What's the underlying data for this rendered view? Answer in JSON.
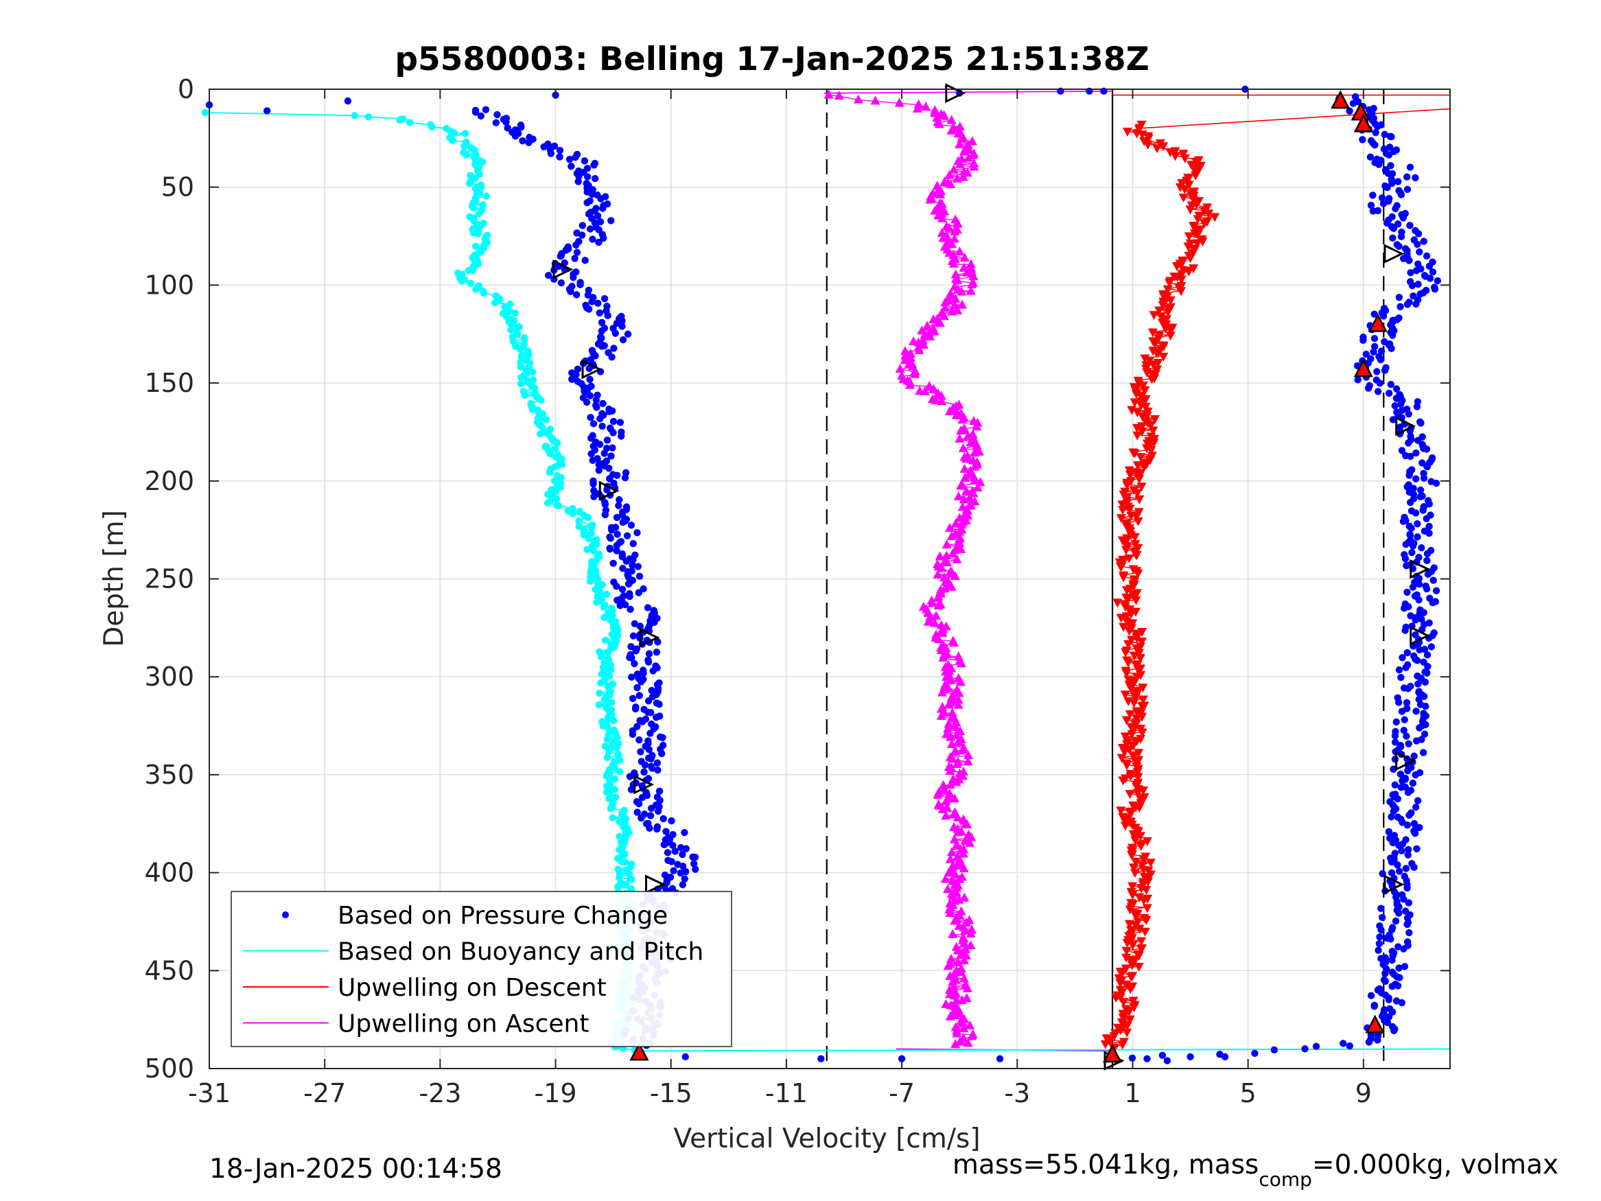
{
  "chart_data": {
    "type": "scatter",
    "title": "p5580003: Belling 17-Jan-2025 21:51:38Z",
    "xlabel": "Vertical Velocity [cm/s]",
    "ylabel": "Depth [m]",
    "xlim": [
      -31,
      12
    ],
    "ylim": [
      0,
      500
    ],
    "y_reversed": true,
    "grid": true,
    "x_ticks": [
      -31,
      -27,
      -23,
      -19,
      -15,
      -11,
      -7,
      -3,
      1,
      5,
      9
    ],
    "x_tick_labels": [
      "-31",
      "-27",
      "-23",
      "-19",
      "-15",
      "-11",
      "-7",
      "-3",
      "1",
      "5",
      "9"
    ],
    "y_ticks": [
      0,
      50,
      100,
      150,
      200,
      250,
      300,
      350,
      400,
      450,
      500
    ],
    "y_tick_labels": [
      "0",
      "50",
      "100",
      "150",
      "200",
      "250",
      "300",
      "350",
      "400",
      "450",
      "500"
    ],
    "reference_lines": [
      {
        "x": -9.6,
        "style": "dashed"
      },
      {
        "x": 0.3,
        "style": "solid"
      },
      {
        "x": 9.7,
        "style": "dashed"
      }
    ],
    "legend_position": "bottom-left",
    "legend": [
      {
        "label": "Based on Pressure Change",
        "marker": "dot",
        "color": "#0000ff"
      },
      {
        "label": "Based on Buoyancy and Pitch",
        "marker": "line",
        "color": "#00ffff"
      },
      {
        "label": "Upwelling on Descent",
        "marker": "line",
        "color": "#ff0000"
      },
      {
        "label": "Upwelling on Ascent",
        "marker": "line",
        "color": "#ff00ff"
      }
    ],
    "series": [
      {
        "name": "Based on Pressure Change",
        "color": "#0000ff",
        "marker": "dot",
        "profiles": [
          {
            "depth": [
              10,
              20,
              30,
              36,
              45,
              55,
              65,
              75,
              85,
              95,
              105,
              115,
              125,
              135,
              145,
              155,
              165,
              175,
              185,
              195,
              205,
              215,
              225,
              235,
              245,
              255,
              265,
              275,
              285,
              295,
              305,
              315,
              325,
              335,
              345,
              355,
              365,
              372,
              380,
              390,
              400,
              410,
              420,
              430,
              440,
              450,
              460,
              470,
              480,
              488
            ],
            "velocity": [
              -21.5,
              -20.5,
              -19.2,
              -18.2,
              -18.0,
              -17.8,
              -17.5,
              -17.8,
              -18.3,
              -18.8,
              -18.0,
              -17.2,
              -17.0,
              -17.3,
              -18.0,
              -17.8,
              -17.3,
              -17.2,
              -17.5,
              -17.0,
              -17.3,
              -17.0,
              -16.6,
              -16.8,
              -16.6,
              -16.5,
              -16.2,
              -15.8,
              -15.9,
              -16.0,
              -15.9,
              -15.8,
              -15.9,
              -15.8,
              -15.9,
              -15.9,
              -15.8,
              -15.6,
              -15.0,
              -14.6,
              -14.7,
              -15.3,
              -15.6,
              -15.5,
              -15.5,
              -15.6,
              -15.7,
              -15.9,
              -16.0,
              -16.3
            ],
            "spread": 0.55
          },
          {
            "depth": [
              495,
              493,
              492,
              490,
              488,
              485,
              482,
              478,
              470,
              460,
              450,
              440,
              430,
              420,
              410,
              400,
              390,
              380,
              370,
              360,
              350,
              340,
              330,
              320,
              310,
              300,
              290,
              280,
              270,
              260,
              250,
              240,
              230,
              220,
              210,
              200,
              190,
              180,
              170,
              160,
              155,
              152,
              148,
              140,
              130,
              120,
              110,
              100,
              92,
              85,
              75,
              65,
              58,
              55,
              50,
              45,
              40,
              35,
              30,
              25,
              18,
              10,
              4
            ],
            "velocity": [
              1.0,
              3.0,
              5.0,
              7.0,
              8.5,
              9.2,
              9.5,
              9.7,
              9.8,
              9.8,
              9.9,
              10.0,
              10.1,
              10.1,
              10.1,
              10.2,
              10.3,
              10.4,
              10.4,
              10.5,
              10.5,
              10.6,
              10.6,
              10.7,
              10.7,
              10.7,
              10.8,
              10.9,
              10.9,
              11.0,
              11.0,
              10.9,
              10.8,
              10.9,
              11.1,
              11.0,
              10.9,
              10.8,
              10.6,
              10.4,
              10.2,
              9.5,
              9.2,
              9.3,
              9.5,
              9.6,
              10.2,
              11.2,
              11.0,
              10.8,
              10.5,
              10.0,
              9.6,
              9.8,
              10.2,
              10.3,
              10.1,
              9.8,
              9.6,
              9.5,
              9.3,
              9.0,
              8.5
            ],
            "spread": 0.55
          }
        ],
        "stray_points": [
          {
            "x": -31.0,
            "y": 8
          },
          {
            "x": -29.0,
            "y": 11
          },
          {
            "x": -26.2,
            "y": 6
          },
          {
            "x": -19.0,
            "y": 3
          },
          {
            "x": -14.5,
            "y": 494
          },
          {
            "x": -9.8,
            "y": 495
          },
          {
            "x": -7.0,
            "y": 495
          },
          {
            "x": -3.6,
            "y": 495
          },
          {
            "x": -5.0,
            "y": 2
          },
          {
            "x": -1.5,
            "y": 1
          },
          {
            "x": -0.5,
            "y": 1
          },
          {
            "x": 0.0,
            "y": 1
          },
          {
            "x": 4.9,
            "y": 0
          },
          {
            "x": 1.5,
            "y": 495
          },
          {
            "x": 2.2,
            "y": 496
          },
          {
            "x": 3.0,
            "y": 494
          },
          {
            "x": 4.2,
            "y": 494
          }
        ]
      },
      {
        "name": "Based on Buoyancy and Pitch",
        "color": "#00ffff",
        "marker": "dot-line",
        "profile": {
          "depth": [
            12,
            12,
            13,
            15,
            18,
            20,
            22,
            25,
            28,
            32,
            36,
            40,
            45,
            50,
            55,
            60,
            65,
            70,
            75,
            80,
            85,
            90,
            95,
            100,
            105,
            110,
            115,
            120,
            130,
            140,
            150,
            160,
            170,
            180,
            190,
            200,
            210,
            215,
            220,
            230,
            240,
            250,
            260,
            270,
            280,
            290,
            300,
            310,
            320,
            330,
            340,
            350,
            360,
            365,
            370,
            380,
            390,
            400,
            410,
            420,
            430,
            440,
            450,
            460,
            470,
            480,
            488,
            491
          ],
          "velocity": [
            -31.0,
            -28.5,
            -26.0,
            -24.5,
            -23.5,
            -22.7,
            -22.3,
            -22.5,
            -22.0,
            -22.0,
            -21.7,
            -21.8,
            -21.8,
            -21.7,
            -21.6,
            -21.7,
            -21.8,
            -21.7,
            -21.6,
            -21.6,
            -21.7,
            -21.6,
            -22.3,
            -21.8,
            -21.2,
            -20.8,
            -20.6,
            -20.4,
            -20.2,
            -20.0,
            -20.0,
            -19.7,
            -19.5,
            -19.2,
            -19.0,
            -19.0,
            -19.2,
            -18.5,
            -18.0,
            -17.8,
            -17.6,
            -17.6,
            -17.4,
            -17.2,
            -17.0,
            -17.4,
            -17.2,
            -17.3,
            -17.2,
            -17.1,
            -17.0,
            -17.0,
            -17.2,
            -16.9,
            -16.8,
            -16.7,
            -16.6,
            -16.6,
            -16.6,
            -16.5,
            -16.6,
            -16.6,
            -16.5,
            -16.6,
            -16.6,
            -16.7,
            -16.8,
            -16.5
          ],
          "spread": 0.25
        },
        "bottom_line": {
          "x": [
            -16.0,
            12.0
          ],
          "depth": [
            491,
            490
          ]
        }
      },
      {
        "name": "Upwelling on Descent",
        "color": "#ff0000",
        "marker": "triangle-down",
        "profile": {
          "depth": [
            18,
            22,
            25,
            30,
            35,
            40,
            45,
            50,
            55,
            60,
            65,
            70,
            75,
            80,
            85,
            90,
            95,
            100,
            105,
            110,
            115,
            120,
            125,
            130,
            135,
            140,
            145,
            150,
            155,
            160,
            170,
            180,
            190,
            200,
            210,
            220,
            230,
            240,
            250,
            260,
            270,
            280,
            290,
            300,
            310,
            320,
            330,
            340,
            350,
            360,
            370,
            380,
            390,
            400,
            410,
            420,
            430,
            440,
            450,
            460,
            470,
            480,
            490
          ],
          "velocity": [
            1.2,
            1.0,
            1.5,
            2.0,
            2.9,
            3.2,
            3.0,
            2.8,
            3.1,
            3.3,
            3.5,
            3.4,
            3.3,
            3.1,
            2.9,
            2.8,
            2.7,
            2.5,
            2.3,
            2.2,
            2.0,
            2.1,
            2.0,
            1.9,
            1.8,
            1.7,
            1.6,
            1.4,
            1.3,
            1.2,
            1.5,
            1.4,
            1.3,
            1.1,
            1.0,
            0.9,
            0.9,
            0.8,
            0.9,
            0.8,
            0.9,
            1.1,
            1.0,
            1.0,
            1.1,
            1.0,
            1.0,
            0.9,
            0.9,
            1.1,
            0.9,
            1.2,
            1.3,
            1.4,
            1.3,
            1.2,
            1.1,
            1.0,
            0.9,
            0.8,
            0.7,
            0.5,
            0.3
          ],
          "spread": 0.35
        },
        "spikes": [
          {
            "x": [
              1.2,
              12.0
            ],
            "depth": [
              20,
              10
            ]
          },
          {
            "x": [
              0.3,
              12.0
            ],
            "depth": [
              3,
              3
            ]
          }
        ]
      },
      {
        "name": "Upwelling on Ascent",
        "color": "#ff00ff",
        "marker": "triangle-up",
        "profile": {
          "depth": [
            488,
            480,
            470,
            460,
            450,
            440,
            430,
            420,
            410,
            400,
            390,
            380,
            370,
            360,
            350,
            340,
            330,
            320,
            310,
            300,
            290,
            280,
            270,
            260,
            250,
            240,
            230,
            220,
            210,
            200,
            190,
            180,
            170,
            160,
            150,
            145,
            140,
            130,
            120,
            110,
            100,
            90,
            80,
            70,
            60,
            50,
            40,
            30,
            20,
            12,
            8,
            3
          ],
          "velocity": [
            -5.0,
            -4.8,
            -5.2,
            -5.0,
            -5.2,
            -4.9,
            -4.9,
            -5.0,
            -5.1,
            -5.2,
            -5.0,
            -4.9,
            -5.3,
            -5.5,
            -5.1,
            -5.0,
            -5.2,
            -5.4,
            -5.3,
            -5.2,
            -5.3,
            -5.6,
            -6.0,
            -5.8,
            -5.5,
            -5.4,
            -5.2,
            -5.0,
            -4.8,
            -4.6,
            -4.5,
            -4.8,
            -4.6,
            -5.4,
            -6.5,
            -6.8,
            -6.9,
            -6.5,
            -5.8,
            -5.2,
            -4.8,
            -4.9,
            -5.5,
            -5.3,
            -5.8,
            -5.5,
            -4.8,
            -4.7,
            -5.2,
            -5.8,
            -6.5,
            -9.5
          ],
          "spread": 0.35
        },
        "surface_line": {
          "x": [
            -9.7,
            0.3
          ],
          "depth": [
            2,
            1
          ]
        },
        "bottom_line": {
          "x": [
            -7.2,
            0.3
          ],
          "depth": [
            490,
            491
          ]
        }
      }
    ],
    "markers": {
      "open_triangle_right": [
        {
          "x": -5.2,
          "y": 2
        },
        {
          "x": -18.8,
          "y": 92
        },
        {
          "x": -17.8,
          "y": 143
        },
        {
          "x": -17.2,
          "y": 205
        },
        {
          "x": -15.8,
          "y": 280
        },
        {
          "x": -16.0,
          "y": 355
        },
        {
          "x": -15.6,
          "y": 406
        },
        {
          "x": -15.7,
          "y": 478
        },
        {
          "x": 0.3,
          "y": 496
        },
        {
          "x": 10.0,
          "y": 84
        },
        {
          "x": 10.4,
          "y": 172
        },
        {
          "x": 10.9,
          "y": 245
        },
        {
          "x": 10.9,
          "y": 279
        },
        {
          "x": 10.4,
          "y": 343
        },
        {
          "x": 10.0,
          "y": 406
        }
      ],
      "red_triangle_up": [
        {
          "x": 8.2,
          "y": 6
        },
        {
          "x": 8.9,
          "y": 12
        },
        {
          "x": 9.0,
          "y": 18
        },
        {
          "x": 9.5,
          "y": 120
        },
        {
          "x": 9.0,
          "y": 143
        },
        {
          "x": 9.4,
          "y": 478
        },
        {
          "x": -16.1,
          "y": 492
        },
        {
          "x": 0.3,
          "y": 493
        }
      ]
    }
  },
  "footer": {
    "timestamp": "18-Jan-2025 00:14:58",
    "mass_text_prefix": "mass=55.041kg, mass",
    "mass_text_sub": "comp",
    "mass_text_suffix": "=0.000kg, volmax"
  }
}
